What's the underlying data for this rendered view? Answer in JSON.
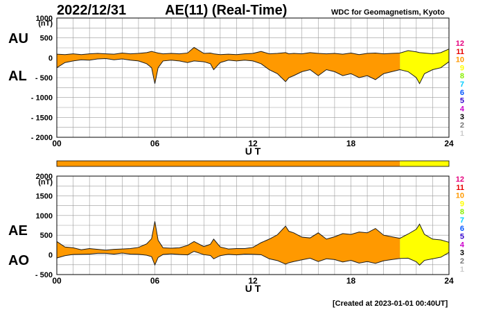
{
  "header": {
    "date": "2022/12/31",
    "title": "AE(11) (Real-Time)",
    "source": "WDC for Geomagnetism, Kyoto"
  },
  "footer": {
    "created": "[Created at 2023-01-01 00:40UT]"
  },
  "colors": {
    "fill_primary": "#ff9900",
    "fill_latest": "#ffff00",
    "outline": "#1a1a1a",
    "grid": "#999999"
  },
  "legend_numbers": [
    {
      "label": "12",
      "color": "#e6007e"
    },
    {
      "label": "11",
      "color": "#e60000"
    },
    {
      "label": "10",
      "color": "#ff9900"
    },
    {
      "label": "9",
      "color": "#ffff00"
    },
    {
      "label": "8",
      "color": "#88ee00"
    },
    {
      "label": "7",
      "color": "#00ccff"
    },
    {
      "label": "6",
      "color": "#0055ff"
    },
    {
      "label": "5",
      "color": "#3300cc"
    },
    {
      "label": "4",
      "color": "#cc00cc"
    },
    {
      "label": "3",
      "color": "#000000"
    },
    {
      "label": "2",
      "color": "#777777"
    },
    {
      "label": "1",
      "color": "#cccccc"
    }
  ],
  "chart_data": [
    {
      "type": "area",
      "xlabel": "U T",
      "ylabel": "(nT)",
      "side_labels": [
        "AU",
        "AL"
      ],
      "xlim": [
        0,
        24
      ],
      "ylim": [
        -2000,
        1000
      ],
      "xticks": [
        0,
        6,
        12,
        18,
        24
      ],
      "xtick_labels": [
        "00",
        "06",
        "12",
        "18",
        "24"
      ],
      "yticks": [
        1000,
        500,
        0,
        -500,
        -1000,
        -1500,
        -2000
      ],
      "ytick_labels": [
        "1000",
        "500",
        "0",
        "- 500",
        "- 1000",
        "- 1500",
        "- 2000"
      ],
      "grid": true,
      "x": [
        0,
        0.5,
        1,
        1.5,
        2,
        2.5,
        3,
        3.5,
        4,
        4.5,
        5,
        5.5,
        5.8,
        6,
        6.2,
        6.5,
        7,
        7.5,
        8,
        8.4,
        9,
        9.4,
        9.6,
        10,
        10.5,
        11,
        11.5,
        12,
        12.5,
        13,
        13.5,
        14,
        14.2,
        14.5,
        15,
        15.5,
        16,
        16.5,
        17,
        17.5,
        18,
        18.5,
        19,
        19.5,
        20,
        20.5,
        21,
        21.5,
        22,
        22.2,
        22.5,
        23,
        23.5,
        24
      ],
      "series": [
        {
          "name": "AU",
          "values": [
            90,
            80,
            100,
            80,
            100,
            110,
            100,
            90,
            120,
            100,
            110,
            130,
            160,
            140,
            120,
            100,
            110,
            100,
            120,
            260,
            110,
            120,
            100,
            80,
            90,
            80,
            100,
            110,
            160,
            100,
            110,
            130,
            100,
            110,
            100,
            130,
            110,
            100,
            110,
            90,
            120,
            80,
            110,
            120,
            100,
            110,
            120,
            180,
            150,
            130,
            120,
            100,
            130,
            220
          ]
        },
        {
          "name": "AL",
          "values": [
            -250,
            -120,
            -80,
            -50,
            -60,
            -30,
            -20,
            -50,
            -30,
            -60,
            -80,
            -150,
            -250,
            -650,
            -250,
            -80,
            -60,
            -80,
            -120,
            -80,
            -100,
            -150,
            -300,
            -120,
            -60,
            -80,
            -60,
            -80,
            -150,
            -300,
            -400,
            -600,
            -500,
            -450,
            -350,
            -300,
            -450,
            -300,
            -350,
            -450,
            -400,
            -500,
            -450,
            -550,
            -400,
            -350,
            -300,
            -350,
            -500,
            -650,
            -400,
            -300,
            -250,
            -100
          ]
        }
      ],
      "latest_from_x": 21
    },
    {
      "type": "area",
      "xlabel": "U T",
      "ylabel": "(nT)",
      "side_labels": [
        "AE",
        "AO"
      ],
      "xlim": [
        0,
        24
      ],
      "ylim": [
        -500,
        2000
      ],
      "xticks": [
        0,
        6,
        12,
        18,
        24
      ],
      "xtick_labels": [
        "00",
        "06",
        "12",
        "18",
        "24"
      ],
      "yticks": [
        2000,
        1500,
        1000,
        500,
        0,
        -500
      ],
      "ytick_labels": [
        "2000",
        "1500",
        "1000",
        "500",
        "0",
        "- 500"
      ],
      "grid": true,
      "x": [
        0,
        0.5,
        1,
        1.5,
        2,
        2.5,
        3,
        3.5,
        4,
        4.5,
        5,
        5.5,
        5.8,
        6,
        6.2,
        6.5,
        7,
        7.5,
        8,
        8.4,
        9,
        9.4,
        9.6,
        10,
        10.5,
        11,
        11.5,
        12,
        12.5,
        13,
        13.5,
        14,
        14.2,
        14.5,
        15,
        15.5,
        16,
        16.5,
        17,
        17.5,
        18,
        18.5,
        19,
        19.5,
        20,
        20.5,
        21,
        21.5,
        22,
        22.2,
        22.5,
        23,
        23.5,
        24
      ],
      "series": [
        {
          "name": "AE",
          "values": [
            340,
            200,
            180,
            130,
            160,
            140,
            120,
            140,
            150,
            160,
            190,
            280,
            410,
            850,
            370,
            180,
            170,
            180,
            240,
            340,
            210,
            270,
            400,
            200,
            150,
            160,
            160,
            190,
            310,
            400,
            510,
            730,
            600,
            560,
            450,
            430,
            560,
            400,
            460,
            540,
            520,
            580,
            560,
            670,
            500,
            460,
            420,
            530,
            650,
            780,
            520,
            400,
            380,
            320
          ]
        },
        {
          "name": "AO",
          "values": [
            -80,
            -20,
            10,
            15,
            20,
            40,
            40,
            20,
            45,
            20,
            15,
            -10,
            -45,
            -255,
            -65,
            10,
            25,
            10,
            0,
            90,
            5,
            -15,
            -100,
            -20,
            15,
            0,
            20,
            15,
            5,
            -100,
            -145,
            -235,
            -200,
            -170,
            -125,
            -85,
            -170,
            -100,
            -120,
            -180,
            -140,
            -210,
            -170,
            -215,
            -150,
            -120,
            -90,
            -85,
            -175,
            -260,
            -140,
            -100,
            -60,
            60
          ]
        }
      ],
      "latest_from_x": 21
    }
  ]
}
